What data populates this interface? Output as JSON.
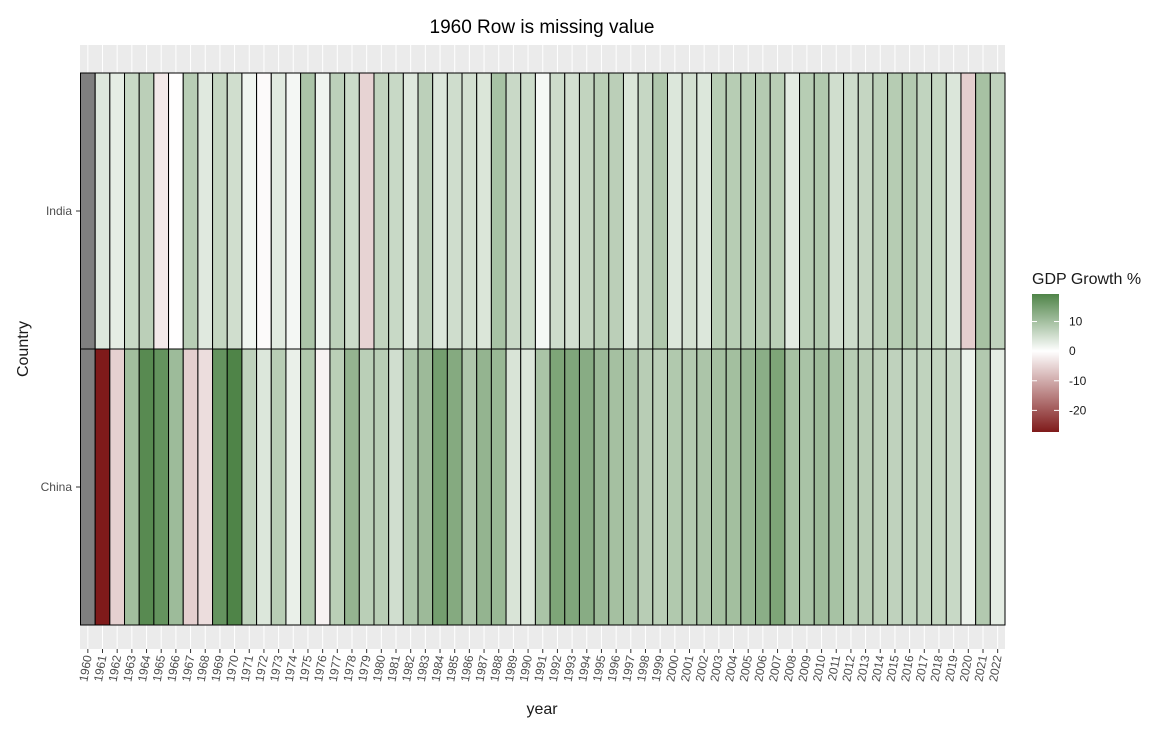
{
  "chart_data": {
    "type": "heatmap",
    "title": "1960 Row is missing value",
    "xlabel": "year",
    "ylabel": "Country",
    "x": [
      "1960",
      "1961",
      "1962",
      "1963",
      "1964",
      "1965",
      "1966",
      "1967",
      "1968",
      "1969",
      "1970",
      "1971",
      "1972",
      "1973",
      "1974",
      "1975",
      "1976",
      "1977",
      "1978",
      "1979",
      "1980",
      "1981",
      "1982",
      "1983",
      "1984",
      "1985",
      "1986",
      "1987",
      "1988",
      "1989",
      "1990",
      "1991",
      "1992",
      "1993",
      "1994",
      "1995",
      "1996",
      "1997",
      "1998",
      "1999",
      "2000",
      "2001",
      "2002",
      "2003",
      "2004",
      "2005",
      "2006",
      "2007",
      "2008",
      "2009",
      "2010",
      "2011",
      "2012",
      "2013",
      "2014",
      "2015",
      "2016",
      "2017",
      "2018",
      "2019",
      "2020",
      "2021",
      "2022"
    ],
    "y": [
      "India",
      "China"
    ],
    "series": [
      {
        "name": "India",
        "values": [
          null,
          3.7,
          2.9,
          6.0,
          7.5,
          -2.6,
          -0.1,
          7.8,
          3.4,
          6.5,
          5.2,
          1.6,
          -0.6,
          3.3,
          1.2,
          9.2,
          1.7,
          7.3,
          5.7,
          -5.2,
          6.7,
          6.0,
          3.5,
          7.3,
          3.8,
          5.3,
          4.8,
          4.0,
          9.6,
          5.9,
          5.5,
          1.1,
          5.5,
          4.8,
          6.7,
          7.6,
          7.5,
          4.0,
          6.2,
          8.8,
          3.8,
          4.8,
          3.8,
          7.9,
          7.9,
          7.9,
          8.1,
          7.7,
          3.1,
          7.9,
          8.5,
          5.2,
          5.5,
          6.4,
          7.4,
          8.0,
          8.3,
          6.8,
          6.5,
          3.9,
          -5.8,
          9.7,
          7.0
        ]
      },
      {
        "name": "China",
        "values": [
          null,
          -27.3,
          -5.6,
          10.2,
          18.3,
          17.0,
          10.7,
          -5.7,
          -4.1,
          16.9,
          19.3,
          7.1,
          3.8,
          7.8,
          2.3,
          8.7,
          -1.6,
          7.6,
          11.7,
          7.6,
          7.8,
          5.1,
          9.0,
          10.8,
          15.2,
          13.4,
          8.9,
          11.7,
          11.2,
          4.2,
          3.9,
          9.3,
          14.2,
          13.9,
          13.0,
          11.0,
          9.9,
          9.2,
          7.8,
          7.7,
          8.5,
          8.3,
          9.1,
          10.0,
          10.1,
          11.4,
          12.7,
          14.2,
          9.7,
          9.4,
          10.6,
          9.6,
          7.9,
          7.8,
          7.4,
          7.0,
          6.8,
          6.9,
          6.7,
          6.0,
          2.2,
          8.4,
          3.0
        ]
      }
    ],
    "colorbar": {
      "title": "GDP Growth %",
      "ticks": [
        10,
        0,
        -10,
        -20
      ],
      "range": [
        -27.3,
        19.3
      ],
      "low_color": "#7f1a1a",
      "mid_color": "#ffffff",
      "high_color": "#4f8448",
      "na_color": "#7f7f7f"
    },
    "panel_background": "#ebebeb",
    "grid": true,
    "legend_position": "right"
  }
}
